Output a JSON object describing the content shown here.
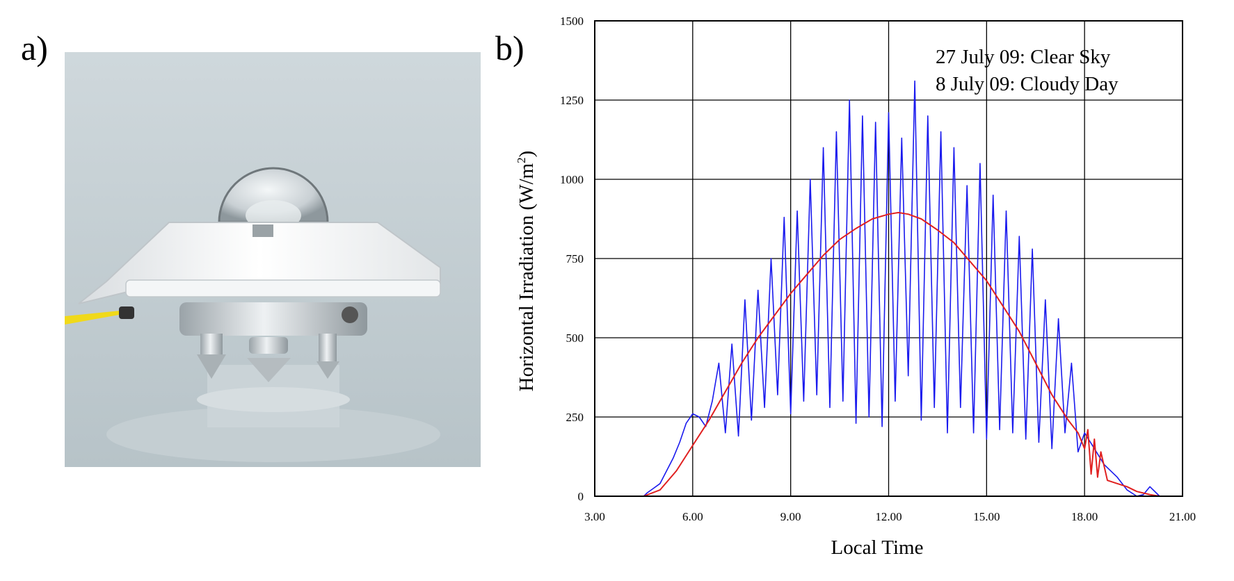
{
  "panels": {
    "a": "a)",
    "b": "b)"
  },
  "photo": {
    "subject": "pyranometer-icon"
  },
  "colors": {
    "clear_sky": "#e02020",
    "cloudy_day": "#1a1aee",
    "grid": "#000000"
  },
  "chart_data": {
    "type": "line",
    "xlabel": "Local Time",
    "ylabel": "Horizontal Irradiation (W/m",
    "ylabel_sup": "2",
    "ylabel_close": ")",
    "xlim": [
      3,
      21
    ],
    "ylim": [
      0,
      1500
    ],
    "xticks": [
      3,
      6,
      9,
      12,
      15,
      18,
      21
    ],
    "xtick_labels": [
      "3.00",
      "6.00",
      "9.00",
      "12.00",
      "15.00",
      "18.00",
      "21.00"
    ],
    "yticks": [
      0,
      250,
      500,
      750,
      1000,
      1250,
      1500
    ],
    "ytick_labels": [
      "0",
      "250",
      "500",
      "750",
      "1000",
      "1250",
      "1500"
    ],
    "grid": true,
    "legend_placement": "top-right",
    "series": [
      {
        "name": "27 July 09: Clear Sky",
        "color": "#e02020",
        "x": [
          3.0,
          4.5,
          5.0,
          5.5,
          6.0,
          6.5,
          7.0,
          7.5,
          8.0,
          8.5,
          9.0,
          9.5,
          10.0,
          10.5,
          11.0,
          11.5,
          12.0,
          12.3,
          12.6,
          13.0,
          13.5,
          14.0,
          14.5,
          15.0,
          15.5,
          16.0,
          16.5,
          17.0,
          17.5,
          17.8,
          18.0,
          18.1,
          18.2,
          18.3,
          18.4,
          18.5,
          18.7,
          19.0,
          19.3,
          19.6,
          20.0,
          20.3,
          21.0
        ],
        "y": [
          0,
          0,
          20,
          80,
          160,
          240,
          330,
          420,
          500,
          570,
          640,
          700,
          760,
          810,
          845,
          875,
          890,
          895,
          890,
          875,
          840,
          800,
          740,
          680,
          600,
          520,
          420,
          320,
          240,
          200,
          150,
          210,
          70,
          180,
          60,
          140,
          50,
          40,
          30,
          15,
          5,
          0,
          0
        ]
      },
      {
        "name": "8 July 09: Cloudy Day",
        "color": "#1a1aee",
        "x": [
          3.0,
          4.5,
          4.6,
          4.8,
          5.0,
          5.2,
          5.4,
          5.6,
          5.8,
          6.0,
          6.2,
          6.4,
          6.6,
          6.8,
          7.0,
          7.2,
          7.4,
          7.6,
          7.8,
          8.0,
          8.2,
          8.4,
          8.6,
          8.8,
          9.0,
          9.2,
          9.4,
          9.6,
          9.8,
          10.0,
          10.2,
          10.4,
          10.6,
          10.8,
          11.0,
          11.2,
          11.4,
          11.6,
          11.8,
          12.0,
          12.2,
          12.4,
          12.6,
          12.8,
          13.0,
          13.2,
          13.4,
          13.6,
          13.8,
          14.0,
          14.2,
          14.4,
          14.6,
          14.8,
          15.0,
          15.2,
          15.4,
          15.6,
          15.8,
          16.0,
          16.2,
          16.4,
          16.6,
          16.8,
          17.0,
          17.2,
          17.4,
          17.6,
          17.8,
          18.0,
          18.3,
          18.6,
          19.0,
          19.3,
          19.6,
          19.8,
          20.0,
          20.3,
          21.0
        ],
        "y": [
          0,
          0,
          10,
          25,
          40,
          80,
          120,
          170,
          230,
          260,
          250,
          220,
          300,
          420,
          200,
          480,
          190,
          620,
          240,
          650,
          280,
          750,
          320,
          880,
          260,
          900,
          300,
          1000,
          320,
          1100,
          280,
          1150,
          300,
          1250,
          230,
          1200,
          250,
          1180,
          220,
          1210,
          300,
          1130,
          380,
          1310,
          240,
          1200,
          280,
          1150,
          200,
          1100,
          280,
          980,
          200,
          1050,
          180,
          950,
          210,
          900,
          200,
          820,
          180,
          780,
          170,
          620,
          150,
          560,
          200,
          420,
          140,
          200,
          150,
          100,
          60,
          20,
          0,
          5,
          30,
          0,
          0
        ]
      }
    ]
  }
}
